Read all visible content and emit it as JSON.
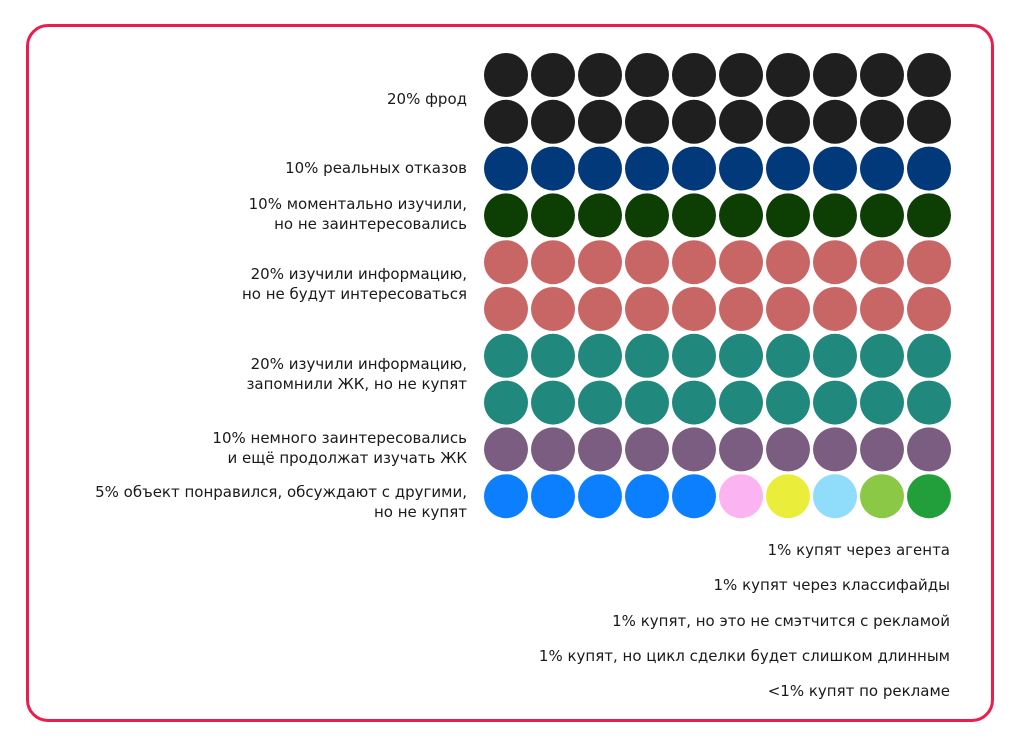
{
  "chart_data": {
    "type": "waffle",
    "columns": 10,
    "rows": [
      {
        "label": [
          "20% фрод"
        ],
        "value": 20,
        "dot_rows": 2,
        "color": "#1f1f1f"
      },
      {
        "label": [
          "10% реальных отказов"
        ],
        "value": 10,
        "dot_rows": 1,
        "color": "#02397a"
      },
      {
        "label": [
          "10% моментально изучили,",
          "но не заинтересовались"
        ],
        "value": 10,
        "dot_rows": 1,
        "color": "#0d3f05"
      },
      {
        "label": [
          "20% изучили информацию,",
          "но не будут интересоваться"
        ],
        "value": 20,
        "dot_rows": 2,
        "color": "#c86665"
      },
      {
        "label": [
          "20% изучили информацию,",
          "запомнили ЖК, но не купят"
        ],
        "value": 20,
        "dot_rows": 2,
        "color": "#20887c"
      },
      {
        "label": [
          "10% немного заинтересовались",
          "и ещё продолжат изучать ЖК"
        ],
        "value": 10,
        "dot_rows": 1,
        "color": "#7c5d82"
      },
      {
        "label": [
          "5%  объект понравился, обсуждают с другими,",
          "но не купят"
        ],
        "value": 5,
        "dot_rows": 1,
        "color": "#0b7ffe",
        "last_row_colors": [
          "#0b7ffe",
          "#0b7ffe",
          "#0b7ffe",
          "#0b7ffe",
          "#0b7ffe",
          "#fbb3f1",
          "#eaee3a",
          "#8fdcfb",
          "#8ac846",
          "#229e3a"
        ]
      }
    ],
    "notes": [
      "1% купят через агента",
      "1% купят через классифайды",
      "1% купят, но это не смэтчится с рекламой",
      "1% купят, но цикл сделки будет слишком длинным",
      "<1% купят по рекламе"
    ],
    "frame_color": "#ec1c4c"
  }
}
